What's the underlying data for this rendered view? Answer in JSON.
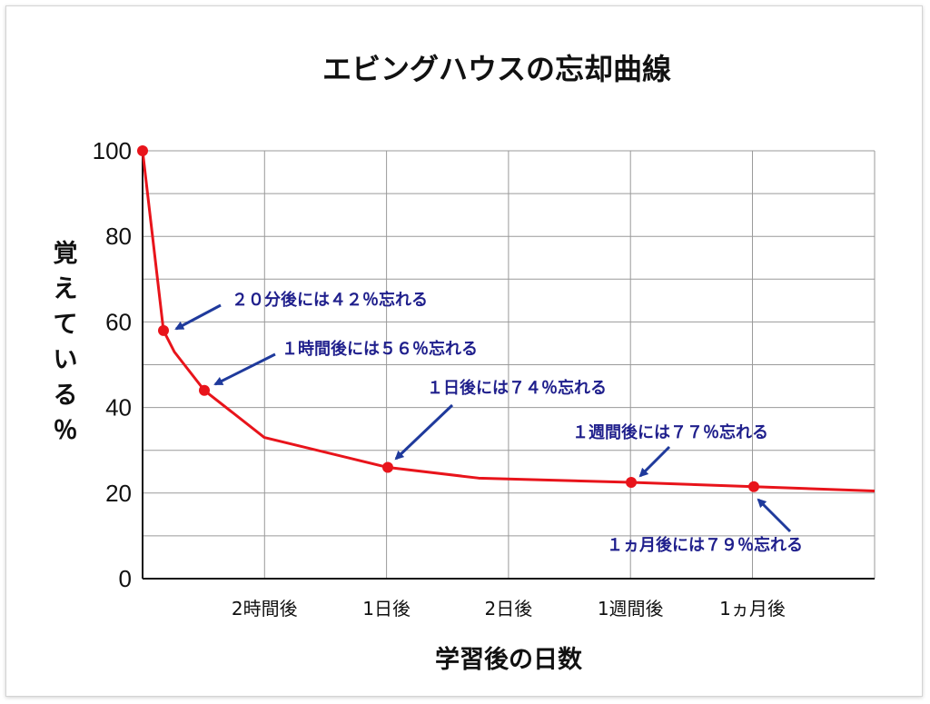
{
  "chart_data": {
    "type": "line",
    "title": "エビングハウスの忘却曲線",
    "xlabel": "学習後の日数",
    "ylabel": "覚えている％",
    "ylim": [
      0,
      100
    ],
    "yticks": [
      "0",
      "20",
      "40",
      "60",
      "80",
      "100"
    ],
    "xticks": [
      "2時間後",
      "1日後",
      "2日後",
      "1週間後",
      "1ヵ月後"
    ],
    "grid": true,
    "legend": "none",
    "line_color": "#e8141b",
    "annotation_color": "#1f1f8c",
    "series": [
      {
        "values": [
          100,
          58,
          53,
          44,
          33,
          26,
          23.5,
          22.5,
          21.5,
          20.5
        ],
        "markers": [
          true,
          true,
          false,
          true,
          false,
          true,
          false,
          true,
          true,
          false
        ]
      }
    ],
    "annotations": [
      "２０分後には４２％忘れる",
      "１時間後には５６％忘れる",
      "１日後には７４％忘れる",
      "１週間後には７７％忘れる",
      "１ヵ月後には７９％忘れる"
    ]
  }
}
